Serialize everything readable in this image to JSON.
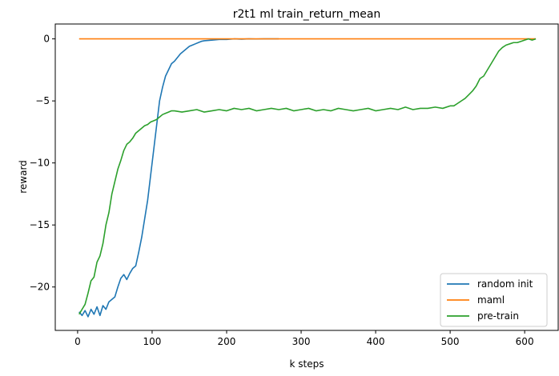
{
  "chart_data": {
    "type": "line",
    "title": "r2t1 ml train_return_mean",
    "xlabel": "k steps",
    "ylabel": "reward",
    "xlim": [
      -30,
      645
    ],
    "ylim": [
      -23.5,
      1.2
    ],
    "xticks": [
      0,
      100,
      200,
      300,
      400,
      500,
      600
    ],
    "yticks": [
      0,
      -5,
      -10,
      -15,
      -20
    ],
    "ytick_labels": [
      "0",
      "−5",
      "−10",
      "−15",
      "−20"
    ],
    "grid": false,
    "legend_position": "bottom-right",
    "series": [
      {
        "name": "random init",
        "color": "#1f77b4",
        "x": [
          2,
          6,
          10,
          14,
          18,
          22,
          26,
          30,
          34,
          38,
          42,
          46,
          50,
          54,
          58,
          62,
          66,
          70,
          74,
          78,
          82,
          86,
          90,
          94,
          98,
          102,
          106,
          110,
          114,
          118,
          122,
          126,
          130,
          134,
          138,
          142,
          146,
          150,
          154,
          158,
          162,
          166,
          170,
          180,
          190,
          200,
          210,
          220,
          230,
          240,
          250,
          260,
          270
        ],
        "y": [
          -22.0,
          -22.3,
          -21.9,
          -22.4,
          -21.8,
          -22.2,
          -21.6,
          -22.3,
          -21.5,
          -21.8,
          -21.2,
          -21.0,
          -20.8,
          -20.0,
          -19.3,
          -19.0,
          -19.4,
          -18.9,
          -18.5,
          -18.3,
          -17.2,
          -16.0,
          -14.5,
          -13.0,
          -11.0,
          -9.0,
          -7.0,
          -5.0,
          -3.9,
          -3.0,
          -2.5,
          -2.0,
          -1.8,
          -1.5,
          -1.2,
          -1.0,
          -0.8,
          -0.6,
          -0.5,
          -0.4,
          -0.3,
          -0.2,
          -0.15,
          -0.1,
          -0.05,
          -0.05,
          0,
          -0.02,
          0,
          -0.01,
          0,
          0,
          0
        ]
      },
      {
        "name": "maml",
        "color": "#ff7f0e",
        "x": [
          2,
          100,
          200,
          300,
          400,
          500,
          600,
          615
        ],
        "y": [
          0,
          0,
          0,
          0,
          0,
          0,
          0,
          0
        ]
      },
      {
        "name": "pre-train",
        "color": "#2ca02c",
        "x": [
          2,
          6,
          10,
          14,
          18,
          22,
          26,
          30,
          34,
          38,
          42,
          46,
          50,
          54,
          58,
          62,
          66,
          70,
          74,
          78,
          82,
          86,
          90,
          94,
          98,
          102,
          106,
          110,
          114,
          118,
          122,
          126,
          130,
          140,
          150,
          160,
          170,
          180,
          190,
          200,
          210,
          220,
          230,
          240,
          250,
          260,
          270,
          280,
          290,
          300,
          310,
          320,
          330,
          340,
          350,
          360,
          370,
          380,
          390,
          400,
          410,
          420,
          430,
          440,
          450,
          460,
          470,
          480,
          490,
          500,
          505,
          510,
          515,
          520,
          525,
          530,
          535,
          540,
          545,
          550,
          555,
          560,
          565,
          570,
          575,
          580,
          585,
          590,
          595,
          600,
          605,
          610,
          615
        ],
        "y": [
          -22.2,
          -21.8,
          -21.4,
          -20.5,
          -19.5,
          -19.2,
          -18.0,
          -17.5,
          -16.5,
          -15.0,
          -14.0,
          -12.5,
          -11.5,
          -10.5,
          -9.8,
          -9.0,
          -8.5,
          -8.3,
          -8.0,
          -7.6,
          -7.4,
          -7.2,
          -7.0,
          -6.9,
          -6.7,
          -6.6,
          -6.5,
          -6.3,
          -6.1,
          -6.0,
          -5.9,
          -5.8,
          -5.8,
          -5.9,
          -5.8,
          -5.7,
          -5.9,
          -5.8,
          -5.7,
          -5.8,
          -5.6,
          -5.7,
          -5.6,
          -5.8,
          -5.7,
          -5.6,
          -5.7,
          -5.6,
          -5.8,
          -5.7,
          -5.6,
          -5.8,
          -5.7,
          -5.8,
          -5.6,
          -5.7,
          -5.8,
          -5.7,
          -5.6,
          -5.8,
          -5.7,
          -5.6,
          -5.7,
          -5.5,
          -5.7,
          -5.6,
          -5.6,
          -5.5,
          -5.6,
          -5.4,
          -5.4,
          -5.2,
          -5.0,
          -4.8,
          -4.5,
          -4.2,
          -3.8,
          -3.2,
          -3.0,
          -2.5,
          -2.0,
          -1.5,
          -1.0,
          -0.7,
          -0.5,
          -0.4,
          -0.3,
          -0.3,
          -0.2,
          -0.1,
          0.0,
          -0.1,
          0.0
        ]
      }
    ]
  }
}
